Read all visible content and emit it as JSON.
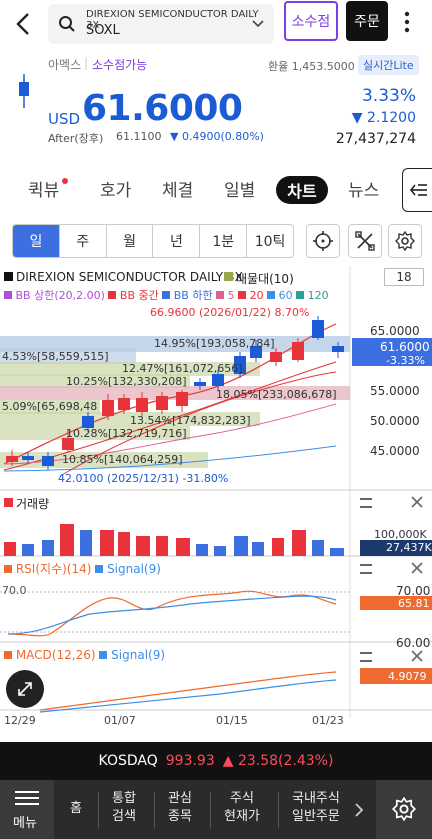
{
  "header": {
    "subtitle": "DIREXION SEMICONDUCTOR DAILY 3X",
    "ticker": "SOXL",
    "fraction_button": "소수점",
    "order_button": "주문"
  },
  "quote": {
    "exchange": "아멕스",
    "fraction_avail": "소수점가능",
    "fx_rate": "환율 1,453.5000",
    "realtime_badge": "실시간Lite",
    "currency": "USD",
    "price": "61.6000",
    "change_pct": "3.33%",
    "change_abs": "▼ 2.1200",
    "volume": "27,437,274",
    "after_label": "After(장후)",
    "after_price": "61.1100",
    "after_change": "▼ 0.4900(0.80%)"
  },
  "tabs": [
    "퀵뷰",
    "호가",
    "체결",
    "일별",
    "차트",
    "뉴스"
  ],
  "period": [
    "일",
    "주",
    "월",
    "년",
    "1분",
    "10틱"
  ],
  "chart": {
    "title": "DIREXION SEMICONDUCTOR DAILY 3X",
    "volume_profile_label": "매물대(10)",
    "scale_box": "18",
    "bb_upper": "BB 상한(20,2.00)",
    "bb_mid": "BB 중간",
    "bb_lower": "BB 하한",
    "ma5": "5",
    "ma20": "20",
    "ma60": "60",
    "ma120": "120",
    "high_note": "66.9600 (2026/01/22) 8.70%",
    "low_note": "42.0100 (2025/12/31) -31.80%",
    "current_price_tag": "61.6000",
    "current_pct_tag": "-3.33%",
    "y_ticks": [
      "65.0000",
      "55.0000",
      "50.0000",
      "45.0000"
    ],
    "vp_labels": [
      "4.53%[58,559,515]",
      "14.95%[193,058,784]",
      "12.47%[161,072,656]",
      "10.25%[132,330,208]",
      "5.09%[65,698,48",
      "18.05%[233,086,678]",
      "13.54%[174,832,283]",
      "10.28%[132,719,716]",
      "10.85%[140,064,259]"
    ],
    "volume_title": "거래량",
    "volume_tick": "100,000K",
    "volume_tag": "27,437K",
    "rsi_title": "RSI(지수)(14)",
    "rsi_signal": "Signal(9)",
    "rsi_tag": "65.81",
    "rsi_ticks": [
      "70.00",
      "60.00"
    ],
    "rsi_left_tick": "70.0",
    "macd_title": "MACD(12,26)",
    "macd_signal": "Signal(9)",
    "macd_tag": "4.9079",
    "x_ticks": [
      "12/29",
      "01/07",
      "01/15",
      "01/23"
    ]
  },
  "market_index": {
    "name": "KOSDAQ",
    "value": "993.93",
    "change": "▲ 23.58(2.43%)"
  },
  "nav": {
    "menu": "메뉴",
    "home": "홈",
    "search": [
      "통합",
      "검색"
    ],
    "watch": [
      "관심",
      "종목"
    ],
    "stock_price": [
      "주식",
      "현재가"
    ],
    "domestic": [
      "국내주식",
      "일반주문"
    ]
  },
  "colors": {
    "up": "#e8333a",
    "down": "#1c5bd6",
    "accent": "#7b3fe4"
  }
}
